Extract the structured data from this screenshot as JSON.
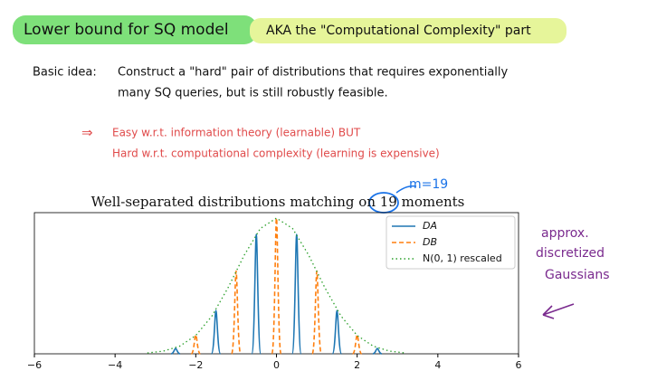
{
  "header": {
    "title": "Lower bound for SQ model",
    "aka": "AKA  the \"Computational Complexity\" part"
  },
  "basic_idea": {
    "label": "Basic idea:",
    "lines": [
      "Construct a \"hard\" pair of distributions that requires exponentially",
      "many SQ queries, but is still robustly feasible."
    ]
  },
  "implication": {
    "arrow": "⇒",
    "lines": [
      "Easy w.r.t. information theory (learnable)   BUT",
      "Hard w.r.t. computational complexity (learning is expensive)"
    ]
  },
  "annotations": {
    "m": "m=19",
    "side": [
      "approx.",
      "discretized",
      "Gaussians"
    ]
  },
  "chart_data": {
    "type": "line",
    "title": "Well-separated distributions matching on 19 moments",
    "xlim": [
      -6,
      6
    ],
    "ylim": [
      0,
      1.04
    ],
    "xticks": [
      {
        "value": -6,
        "label": "−6"
      },
      {
        "value": -4,
        "label": "−4"
      },
      {
        "value": -2,
        "label": "−2"
      },
      0,
      2,
      4,
      6
    ],
    "legend": "upper right",
    "series": [
      {
        "name": "DA",
        "color": "#1f77b4",
        "linestyle": "solid",
        "spikes": true,
        "x": [
          -2.5,
          -1.5,
          -0.5,
          0.5,
          1.5,
          2.5
        ],
        "values": [
          0.04,
          0.32,
          0.88,
          0.88,
          0.32,
          0.04
        ]
      },
      {
        "name": "DB",
        "color": "#ff7f0e",
        "linestyle": "dashed",
        "spikes": true,
        "x": [
          -2,
          -1,
          0,
          1,
          2
        ],
        "values": [
          0.14,
          0.61,
          1.0,
          0.61,
          0.14
        ]
      },
      {
        "name": "N(0, 1) rescaled",
        "color": "#2ca02c",
        "linestyle": "dotted",
        "spikes": false,
        "x": [
          -3.2,
          -2.8,
          -2.4,
          -2.0,
          -1.6,
          -1.2,
          -0.8,
          -0.4,
          0,
          0.4,
          0.8,
          1.2,
          1.6,
          2.0,
          2.4,
          2.8,
          3.2
        ],
        "values": [
          0.006,
          0.02,
          0.056,
          0.135,
          0.278,
          0.487,
          0.726,
          0.923,
          1.0,
          0.923,
          0.726,
          0.487,
          0.278,
          0.135,
          0.056,
          0.02,
          0.006
        ]
      }
    ]
  }
}
